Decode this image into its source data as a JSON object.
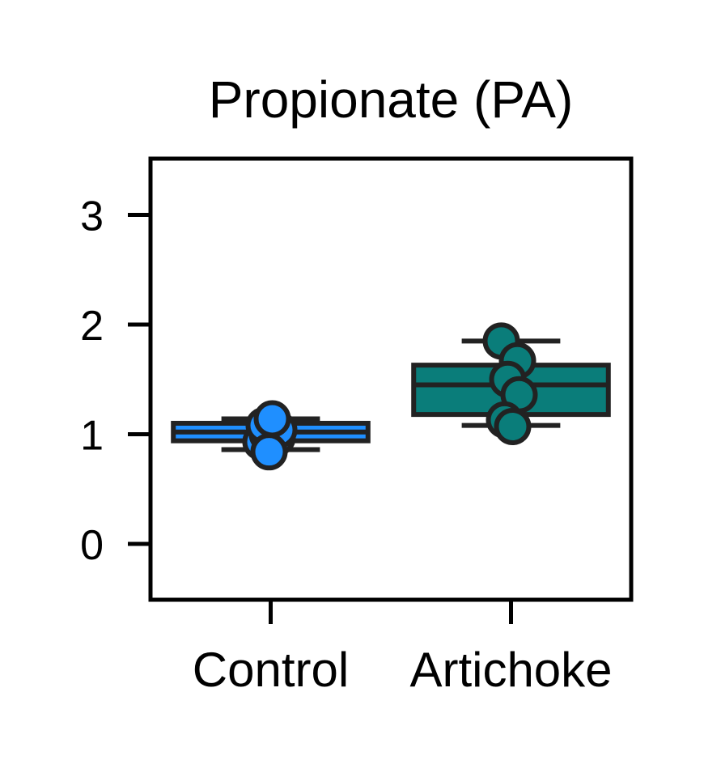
{
  "chart_data": {
    "type": "box",
    "title": "Propionate (PA)",
    "xlabel": "",
    "ylabel": "",
    "ylim": [
      -0.5,
      3.5
    ],
    "yticks": [
      0,
      1,
      2,
      3
    ],
    "yticklabels": [
      "0",
      "1",
      "2",
      "3"
    ],
    "categories": [
      "Control",
      "Artichoke"
    ],
    "grid": false,
    "legend": "none",
    "boxes": [
      {
        "category": "Control",
        "color": "#1f8fff",
        "edge_color": "#222222",
        "whisker_low": 0.86,
        "q1": 0.94,
        "median": 1.02,
        "q3": 1.1,
        "whisker_high": 1.14,
        "points": [
          0.93,
          0.97,
          1.0,
          1.04,
          1.08,
          1.14,
          0.84
        ]
      },
      {
        "category": "Artichoke",
        "color": "#0a7d7a",
        "edge_color": "#222222",
        "whisker_low": 1.08,
        "q1": 1.18,
        "median": 1.45,
        "q3": 1.63,
        "whisker_high": 1.85,
        "points": [
          1.85,
          1.67,
          1.5,
          1.36,
          1.13,
          1.07
        ]
      }
    ]
  }
}
